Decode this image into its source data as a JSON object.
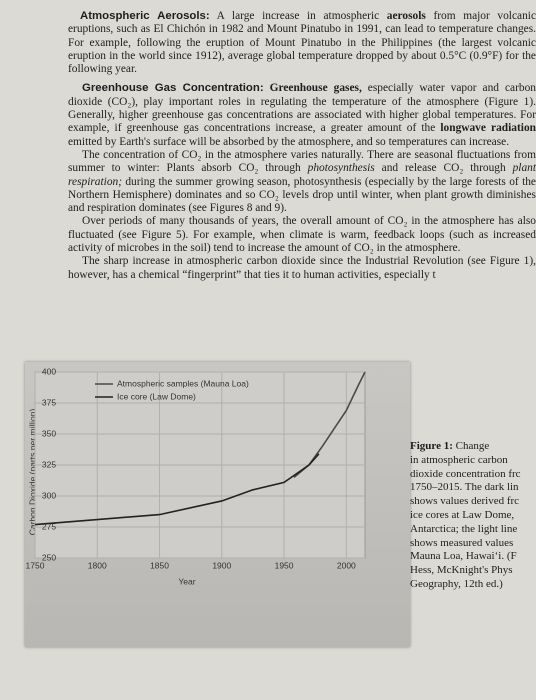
{
  "paragraphs": [
    [
      "Atmospheric Aerosols:",
      " A large increase in atmospheric ",
      "aerosols",
      " from major volcanic eruptions, such as El Chichón in 1982 and Mount Pinatubo in 1991, can lead to temperature changes. For example, following the eruption of Mount Pinatubo in the Philippines (the largest volcanic eruption in the world since 1912), average global temperature dropped by about 0.5°C (0.9°F) for the following year."
    ],
    [
      "Greenhouse Gas Concentration:",
      " ",
      "Greenhouse gases,",
      " especially water vapor and carbon dioxide (CO₂), play important roles in regulating the temperature of the atmosphere (Figure 1). Generally, higher greenhouse gas concentrations are associated with higher global temperatures. For example, if greenhouse gas concentrations increase, a greater amount of the ",
      "longwave radiation",
      " emitted by Earth's surface will be absorbed by the atmosphere, and so temperatures can increase."
    ],
    [
      "The concentration of CO₂ in the atmosphere varies naturally. There are seasonal fluctuations from summer to winter: Plants absorb CO₂ through ",
      "photosynthesis",
      " and release CO₂ through ",
      "plant respiration;",
      " during the summer growing season, photosynthesis (especially by the large forests of the Northern Hemisphere) dominates and so CO₂ levels drop until winter, when plant growth diminishes and respiration dominates (see Figures 8 and 9)."
    ],
    [
      "Over periods of many thousands of years, the overall amount of CO₂ in the atmosphere has also fluctuated (see Figure 5). For example, when climate is warm, feedback loops (such as increased activity of microbes in the soil) tend to increase the amount of CO₂ in the atmosphere."
    ],
    [
      "The sharp increase in atmospheric carbon dioxide since the Industrial Revolution (see Figure 1), however, has a chemical “fingerprint” that ties it to human activities, especially t"
    ]
  ],
  "caption": {
    "label": "Figure 1:",
    "lines": [
      " Change",
      "in atmospheric carbon",
      "dioxide concentration frc",
      "1750–2015. The dark lin",
      "shows values derived frc",
      "ice cores at Law Dome,",
      "Antarctica; the light line",
      "shows measured values",
      "Mauna Loa, Hawai‘i. (F",
      "Hess, McKnight's Phys",
      "Geography, 12th ed.)"
    ]
  },
  "chart_data": {
    "type": "line",
    "xlabel": "Year",
    "ylabel": "Carbon Dioxide (parts per million)",
    "xlim": [
      1750,
      2015
    ],
    "ylim": [
      250,
      400
    ],
    "xticks": [
      1750,
      1800,
      1850,
      1900,
      1950,
      2000
    ],
    "yticks": [
      250,
      275,
      300,
      325,
      350,
      375,
      400
    ],
    "grid": true,
    "series": [
      {
        "name": "Atmospheric samples (Mauna Loa)",
        "color": "#4a4a4a",
        "x": [
          1958,
          1970,
          1980,
          1990,
          2000,
          2010,
          2015
        ],
        "values": [
          315,
          325,
          339,
          354,
          369,
          390,
          400
        ]
      },
      {
        "name": "Ice core (Law Dome)",
        "color": "#222222",
        "x": [
          1750,
          1800,
          1850,
          1900,
          1925,
          1950,
          1970,
          1978
        ],
        "values": [
          277,
          281,
          285,
          296,
          305,
          311,
          325,
          334
        ]
      }
    ]
  }
}
